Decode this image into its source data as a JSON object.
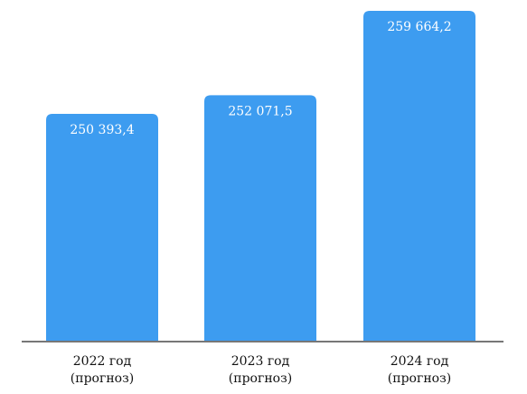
{
  "chart_data": {
    "type": "bar",
    "categories": [
      "2022 год\n(прогноз)",
      "2023 год\n(прогноз)",
      "2024 год\n(прогноз)"
    ],
    "values": [
      250393.4,
      252071.5,
      259664.2
    ],
    "data_labels": [
      "250 393,4",
      "252 071,5",
      "259 664,2"
    ],
    "title": "",
    "xlabel": "",
    "ylabel": "",
    "grid": false,
    "legend": "none",
    "colors": {
      "bar": "#3d9cf0",
      "axis": "#4a4a4a",
      "label_text": "#111111",
      "value_text": "#ffffff"
    }
  }
}
